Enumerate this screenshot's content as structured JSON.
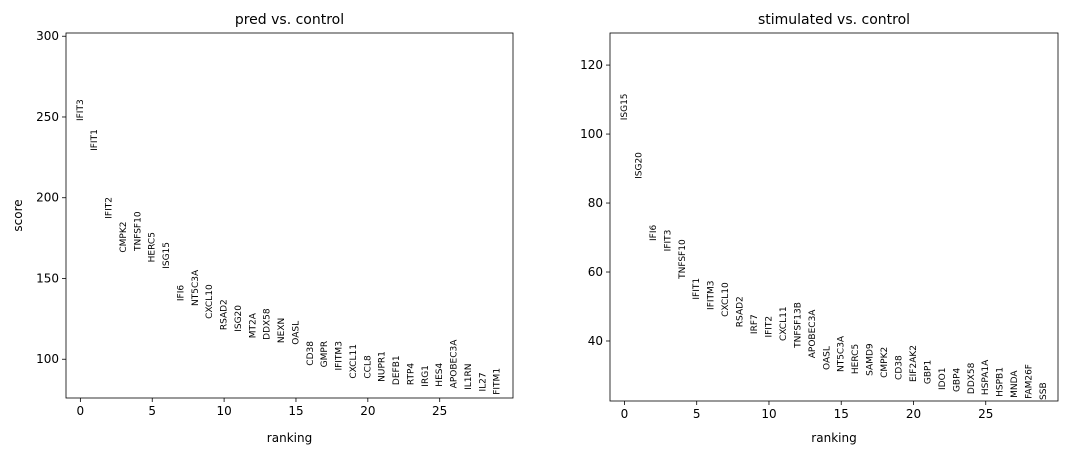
{
  "chart_data": [
    {
      "type": "scatter",
      "title": "pred vs. control",
      "xlabel": "ranking",
      "ylabel": "score",
      "x": [
        0,
        1,
        2,
        3,
        4,
        5,
        6,
        7,
        8,
        9,
        10,
        11,
        12,
        13,
        14,
        15,
        16,
        17,
        18,
        19,
        20,
        21,
        22,
        23,
        24,
        25,
        26,
        27,
        28,
        29
      ],
      "labels": [
        "IFIT3",
        "IFIT1",
        "IFIT2",
        "CMPK2",
        "TNFSF10",
        "HERC5",
        "ISG15",
        "IFI6",
        "NT5C3A",
        "CXCL10",
        "RSAD2",
        "ISG20",
        "MT2A",
        "DDX58",
        "NEXN",
        "OASL",
        "CD38",
        "GMPR",
        "IFITM3",
        "CXCL11",
        "CCL8",
        "NUPR1",
        "DEFB1",
        "RTP4",
        "IRG1",
        "HES4",
        "APOBEC3A",
        "IL1RN",
        "IL27",
        "FITM1"
      ],
      "values": [
        247.5,
        229,
        187,
        166,
        167,
        160,
        156,
        136,
        133,
        125,
        118,
        117,
        113,
        112,
        110,
        109,
        96,
        95,
        93,
        88,
        88,
        86,
        84,
        84,
        83,
        83,
        82,
        81,
        80,
        78
      ],
      "xlim": [
        -1,
        30.1
      ],
      "ylim": [
        76,
        302
      ],
      "xticks": [
        0,
        5,
        10,
        15,
        20,
        25
      ],
      "yticks": [
        100,
        150,
        200,
        250,
        300
      ]
    },
    {
      "type": "scatter",
      "title": "stimulated vs. control",
      "xlabel": "ranking",
      "x": [
        0,
        1,
        2,
        3,
        4,
        5,
        6,
        7,
        8,
        9,
        10,
        11,
        12,
        13,
        14,
        15,
        16,
        17,
        18,
        19,
        20,
        21,
        22,
        23,
        24,
        25,
        26,
        27,
        28,
        29
      ],
      "labels": [
        "ISG15",
        "ISG20",
        "IFI6",
        "IFIT3",
        "TNFSF10",
        "IFIT1",
        "IFITM3",
        "CXCL10",
        "RSAD2",
        "IRF7",
        "IFIT2",
        "CXCL11",
        "TNFSF13B",
        "APOBEC3A",
        "OASL",
        "NT5C3A",
        "HERC5",
        "SAMD9",
        "CMPK2",
        "CD38",
        "EIF2AK2",
        "GBP1",
        "IDO1",
        "GBP4",
        "DDX58",
        "HSPA1A",
        "HSPB1",
        "MNDA",
        "FAM26F",
        "SSB"
      ],
      "values": [
        104,
        87,
        69,
        66,
        58,
        52,
        49,
        47,
        44,
        42,
        41,
        40,
        38,
        35,
        31.6,
        31,
        30.4,
        29.9,
        29.3,
        28.7,
        28.1,
        27.5,
        25.8,
        25.2,
        24.6,
        24.3,
        23.8,
        23.5,
        23.2,
        22.9
      ],
      "xlim": [
        -1,
        30
      ],
      "ylim": [
        22.6,
        129.3
      ],
      "xticks": [
        0,
        5,
        10,
        15,
        20,
        25
      ],
      "yticks": [
        40,
        60,
        80,
        100,
        120
      ]
    }
  ]
}
